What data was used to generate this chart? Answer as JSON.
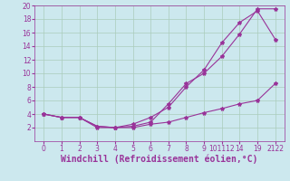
{
  "background_color": "#cce8ee",
  "grid_color": "#aaccbb",
  "line_color": "#993399",
  "xlabel": "Windchill (Refroidissement éolien,°C)",
  "xlabel_color": "#993399",
  "xlabel_fontsize": 7,
  "ytick_color": "#993399",
  "xtick_color": "#993399",
  "ylim": [
    0,
    20
  ],
  "yticks": [
    2,
    4,
    6,
    8,
    10,
    12,
    14,
    16,
    18,
    20
  ],
  "xtick_labels": [
    "0",
    "1",
    "2",
    "3",
    "4",
    "5",
    "6",
    "7",
    "8",
    "9",
    "101112",
    "14",
    "19",
    "2122"
  ],
  "curve1_x": [
    0,
    1,
    2,
    3,
    4,
    5,
    6,
    7,
    8,
    9,
    10,
    11,
    12,
    13
  ],
  "curve1_y": [
    4.0,
    3.5,
    3.5,
    2.2,
    2.0,
    2.5,
    3.5,
    5.0,
    8.0,
    10.5,
    14.5,
    17.5,
    19.2,
    15.0
  ],
  "curve2_x": [
    0,
    1,
    2,
    3,
    4,
    5,
    6,
    7,
    8,
    9,
    10,
    11,
    12,
    13
  ],
  "curve2_y": [
    4.0,
    3.5,
    3.5,
    2.2,
    2.0,
    2.2,
    2.8,
    5.5,
    8.5,
    10.0,
    12.5,
    15.8,
    19.5,
    19.5
  ],
  "curve3_x": [
    0,
    1,
    2,
    3,
    4,
    5,
    6,
    7,
    8,
    9,
    10,
    11,
    12,
    13
  ],
  "curve3_y": [
    4.0,
    3.5,
    3.5,
    2.0,
    2.0,
    2.0,
    2.5,
    2.8,
    3.5,
    4.2,
    4.8,
    5.5,
    6.0,
    8.5
  ],
  "marker": "*",
  "markersize": 3,
  "linewidth": 0.8,
  "tick_fontsize": 5.5
}
